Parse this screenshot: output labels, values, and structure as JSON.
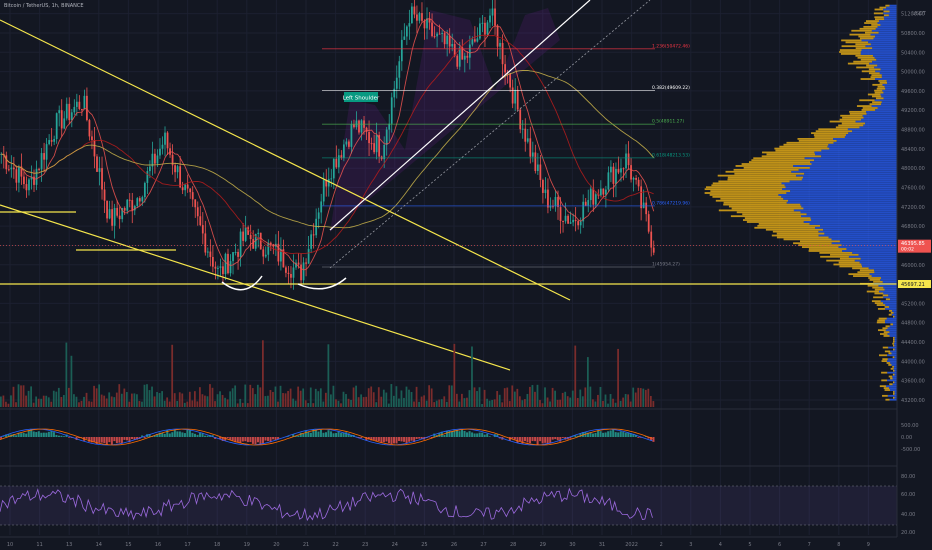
{
  "header": {
    "symbol_line": "Bitcoin / TetherUS, 1h, BINANCE"
  },
  "price_axis": {
    "unit": "USDT",
    "ticks": [
      "51200.00",
      "50800.00",
      "50400.00",
      "50000.00",
      "49600.00",
      "49200.00",
      "48800.00",
      "48400.00",
      "48000.00",
      "47600.00",
      "47200.00",
      "46800.00",
      "46400.00",
      "46000.00",
      "45600.00",
      "45200.00",
      "44800.00",
      "44400.00",
      "44000.00",
      "43600.00",
      "43200.00"
    ],
    "last_price": "46395.85",
    "last_price_sub": "00:02",
    "support_label": "45697.21"
  },
  "fib_levels": [
    {
      "label": "1.236(50472.46)",
      "color": "#f23645"
    },
    {
      "label": "0.382(49609.22)",
      "color": "#ffffff"
    },
    {
      "label": "0.5(48911.27)",
      "color": "#4caf50"
    },
    {
      "label": "0.618(48213.53)",
      "color": "#089981"
    },
    {
      "label": "0.786(47219.96)",
      "color": "#2962ff"
    },
    {
      "label": "1(45954.27)",
      "color": "#787b86"
    }
  ],
  "annotations": {
    "left_shoulder": "Left Shoulder"
  },
  "macd_axis": {
    "ticks": [
      "500.00",
      "0.00",
      "-500.00"
    ]
  },
  "rsi_axis": {
    "ticks": [
      "80.00",
      "60.00",
      "40.00",
      "20.00"
    ]
  },
  "time_axis": {
    "ticks": [
      "10",
      "11",
      "13",
      "14",
      "15",
      "16",
      "17",
      "18",
      "19",
      "20",
      "21",
      "22",
      "23",
      "24",
      "25",
      "26",
      "27",
      "28",
      "29",
      "30",
      "31",
      "2022",
      "2",
      "3",
      "4",
      "5",
      "6",
      "7",
      "8",
      "9"
    ]
  },
  "chart_data": {
    "type": "candlestick",
    "symbol": "Bitcoin / TetherUS",
    "interval": "1h",
    "exchange": "BINANCE",
    "ylim": [
      43200,
      51400
    ],
    "key_levels": {
      "support": 45697.21,
      "last_price": 46395.85
    },
    "fibonacci": {
      "1.236": 50472.46,
      "0.382": 49609.22,
      "0.5": 48911.27,
      "0.618": 48213.53,
      "0.786": 47219.96,
      "1": 45954.27
    },
    "price_path": [
      {
        "day": "10",
        "close": 48300
      },
      {
        "day": "11",
        "close": 47600
      },
      {
        "day": "13",
        "close": 48900
      },
      {
        "day": "13.5",
        "close": 49400
      },
      {
        "day": "14",
        "close": 46900
      },
      {
        "day": "15",
        "close": 47400
      },
      {
        "day": "16",
        "close": 48600
      },
      {
        "day": "17",
        "close": 47200
      },
      {
        "day": "18",
        "close": 45800
      },
      {
        "day": "19",
        "close": 46600
      },
      {
        "day": "20",
        "close": 46300
      },
      {
        "day": "20.5",
        "close": 45800
      },
      {
        "day": "21",
        "close": 47900
      },
      {
        "day": "22",
        "close": 48900
      },
      {
        "day": "23",
        "close": 48400
      },
      {
        "day": "24",
        "close": 51200
      },
      {
        "day": "25",
        "close": 50700
      },
      {
        "day": "26",
        "close": 50200
      },
      {
        "day": "27",
        "close": 51200
      },
      {
        "day": "28",
        "close": 49200
      },
      {
        "day": "29",
        "close": 47400
      },
      {
        "day": "30",
        "close": 46900
      },
      {
        "day": "31",
        "close": 47600
      },
      {
        "day": "31.5",
        "close": 48200
      },
      {
        "day": "31.8",
        "close": 46395.85
      }
    ]
  }
}
